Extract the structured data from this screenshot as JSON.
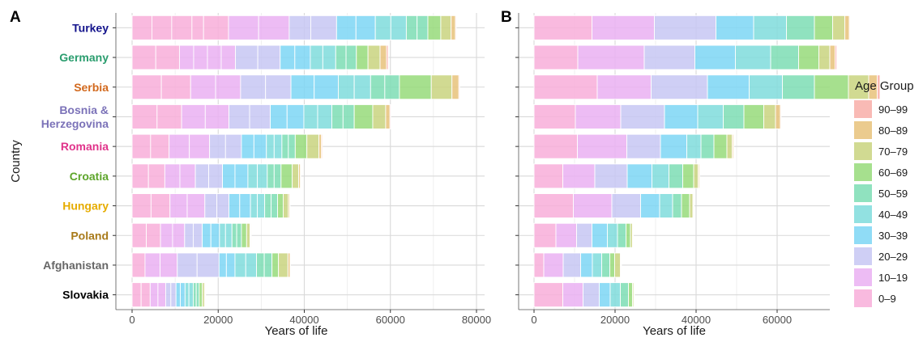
{
  "y_axis_title": "Country",
  "legend": {
    "title": "Age Group",
    "items": [
      {
        "label": "90–99",
        "color": "#F8AEA8"
      },
      {
        "label": "80–89",
        "color": "#E8C27A"
      },
      {
        "label": "70–79",
        "color": "#C9D37F"
      },
      {
        "label": "60–69",
        "color": "#97DA7A"
      },
      {
        "label": "50–59",
        "color": "#7DDDB4"
      },
      {
        "label": "40–49",
        "color": "#7FDCDC"
      },
      {
        "label": "30–39",
        "color": "#7DD6F4"
      },
      {
        "label": "20–29",
        "color": "#C7C7F3"
      },
      {
        "label": "10–19",
        "color": "#EAB0F2"
      },
      {
        "label": "0–9",
        "color": "#F8AED9"
      }
    ]
  },
  "chart_data": [
    {
      "panel": "A",
      "type": "bar",
      "orientation": "horizontal",
      "stacked": true,
      "xlabel": "Years of life",
      "ylabel": "Country",
      "xlim": [
        0,
        80000
      ],
      "xticks": [
        0,
        20000,
        40000,
        60000,
        80000
      ],
      "grid": true,
      "categories": [
        {
          "name": "Turkey",
          "color": "#14148C"
        },
        {
          "name": "Germany",
          "color": "#2A9D6E"
        },
        {
          "name": "Serbia",
          "color": "#D2691E"
        },
        {
          "name": "Bosnia & Herzegovina",
          "lines": [
            "Bosnia &",
            "Herzegovina"
          ],
          "color": "#7B72B8"
        },
        {
          "name": "Romania",
          "color": "#E0338A"
        },
        {
          "name": "Croatia",
          "color": "#5DA52A"
        },
        {
          "name": "Hungary",
          "color": "#E6AC00"
        },
        {
          "name": "Poland",
          "color": "#A87A1A"
        },
        {
          "name": "Afghanistan",
          "color": "#666666"
        },
        {
          "name": "Slovakia",
          "color": "#000000"
        }
      ],
      "age_groups": [
        "0–9",
        "10–19",
        "20–29",
        "30–39",
        "40–49",
        "50–59",
        "60–69",
        "70–79",
        "80–89",
        "90–99"
      ],
      "values": {
        "Turkey": [
          [
            4600,
            4600,
            4700,
            2700,
            5800
          ],
          [
            7000,
            7100
          ],
          [
            5000,
            6000
          ],
          [
            4500,
            4500
          ],
          [
            3600,
            3600
          ],
          [
            2500,
            2500
          ],
          [
            3000
          ],
          [
            2400
          ],
          [
            1000
          ],
          [
            200
          ]
        ],
        "Germany": [
          [
            5500,
            5500
          ],
          [
            3300,
            3200,
            3200,
            3300
          ],
          [
            5200,
            5200
          ],
          [
            3400,
            3600
          ],
          [
            2900,
            3000
          ],
          [
            2400,
            2400
          ],
          [
            2700
          ],
          [
            2800
          ],
          [
            1500
          ],
          [
            400
          ]
        ],
        "Serbia": [
          [
            6800,
            6800
          ],
          [
            5800,
            5800
          ],
          [
            5800,
            5900
          ],
          [
            5400,
            5600
          ],
          [
            3700,
            3800
          ],
          [
            3300,
            3400
          ],
          [
            7400
          ],
          [
            4800
          ],
          [
            1600
          ],
          [
            200
          ]
        ],
        "Bosnia & Herzegovina": [
          [
            5800,
            5700
          ],
          [
            5500,
            5500
          ],
          [
            4800,
            4800
          ],
          [
            3900,
            3900
          ],
          [
            3200,
            3300
          ],
          [
            2600,
            2600
          ],
          [
            4300
          ],
          [
            3000
          ],
          [
            1000
          ],
          [
            200
          ]
        ],
        "Romania": [
          [
            4300,
            4300
          ],
          [
            4700,
            4700
          ],
          [
            3700,
            3700
          ],
          [
            2900,
            2900
          ],
          [
            1800,
            1800
          ],
          [
            1500,
            1600
          ],
          [
            2700
          ],
          [
            2800
          ],
          [
            600
          ],
          [
            200
          ]
        ],
        "Croatia": [
          [
            3800,
            3800
          ],
          [
            3500,
            3600
          ],
          [
            3100,
            3200
          ],
          [
            2900,
            3000
          ],
          [
            2200,
            2300
          ],
          [
            1600,
            1600
          ],
          [
            2600
          ],
          [
            1500
          ],
          [
            400
          ],
          [
            100
          ]
        ],
        "Hungary": [
          [
            4400,
            4400
          ],
          [
            4000,
            4100
          ],
          [
            2800,
            2800
          ],
          [
            2500,
            2500
          ],
          [
            1600,
            1700
          ],
          [
            1500,
            1500
          ],
          [
            1300
          ],
          [
            1200
          ],
          [
            300
          ],
          [
            100
          ]
        ],
        "Poland": [
          [
            3300,
            3300
          ],
          [
            2800,
            2800
          ],
          [
            2000,
            2100
          ],
          [
            2000,
            2000
          ],
          [
            1400,
            1500
          ],
          [
            1100,
            1100
          ],
          [
            1200
          ],
          [
            800
          ],
          [
            200
          ],
          [
            100
          ]
        ],
        "Afghanistan": [
          [
            3000
          ],
          [
            3500,
            4000
          ],
          [
            4600,
            5100
          ],
          [
            1700,
            2000
          ],
          [
            2500,
            2500
          ],
          [
            1800,
            1800
          ],
          [
            1500
          ],
          [
            2200
          ],
          [
            500
          ],
          [
            100
          ]
        ],
        "Slovakia": [
          [
            2100,
            2100
          ],
          [
            1800,
            1800
          ],
          [
            1200,
            1200
          ],
          [
            1000,
            1100
          ],
          [
            900,
            1000
          ],
          [
            700,
            700
          ],
          [
            700
          ],
          [
            500
          ],
          [
            200
          ],
          [
            100
          ]
        ]
      }
    },
    {
      "panel": "B",
      "type": "bar",
      "orientation": "horizontal",
      "stacked": true,
      "xlabel": "Years of life",
      "xlim": [
        0,
        73000
      ],
      "xticks": [
        0,
        20000,
        40000,
        60000
      ],
      "grid": true,
      "categories": [
        "Turkey",
        "Germany",
        "Serbia",
        "Bosnia & Herzegovina",
        "Romania",
        "Croatia",
        "Hungary",
        "Poland",
        "Afghanistan",
        "Slovakia"
      ],
      "age_groups": [
        "0–9",
        "10–19",
        "20–29",
        "30–39",
        "40–49",
        "50–59",
        "60–69",
        "70–79",
        "80–89",
        "90–99"
      ],
      "values": {
        "Turkey": [
          [
            14300
          ],
          [
            15400
          ],
          [
            15200
          ],
          [
            9300
          ],
          [
            8100
          ],
          [
            6900
          ],
          [
            4500
          ],
          [
            3000
          ],
          [
            1100
          ],
          [
            200
          ]
        ],
        "Germany": [
          [
            10800
          ],
          [
            16400
          ],
          [
            12500
          ],
          [
            10000
          ],
          [
            8700
          ],
          [
            6900
          ],
          [
            5000
          ],
          [
            2700
          ],
          [
            1300
          ],
          [
            400
          ]
        ],
        "Serbia": [
          [
            15600
          ],
          [
            13300
          ],
          [
            13900
          ],
          [
            10300
          ],
          [
            8200
          ],
          [
            7900
          ],
          [
            8400
          ],
          [
            5000
          ],
          [
            2100
          ],
          [
            700
          ]
        ],
        "Bosnia & Herzegovina": [
          [
            10200
          ],
          [
            11200
          ],
          [
            10800
          ],
          [
            8200
          ],
          [
            6300
          ],
          [
            5100
          ],
          [
            4900
          ],
          [
            2900
          ],
          [
            1200
          ],
          [
            200
          ]
        ],
        "Romania": [
          [
            10700
          ],
          [
            12200
          ],
          [
            8300
          ],
          [
            6500
          ],
          [
            3500
          ],
          [
            3200
          ],
          [
            3200
          ],
          [
            1300
          ],
          [
            300
          ],
          [
            100
          ]
        ],
        "Croatia": [
          [
            7100
          ],
          [
            7900
          ],
          [
            8000
          ],
          [
            6100
          ],
          [
            4200
          ],
          [
            3400
          ],
          [
            2700
          ],
          [
            1100
          ],
          [
            300
          ],
          [
            100
          ]
        ],
        "Hungary": [
          [
            9700
          ],
          [
            9500
          ],
          [
            7100
          ],
          [
            4700
          ],
          [
            3200
          ],
          [
            2200
          ],
          [
            2000
          ],
          [
            800
          ],
          [
            200
          ],
          [
            100
          ]
        ],
        "Poland": [
          [
            5400
          ],
          [
            5100
          ],
          [
            3800
          ],
          [
            3800
          ],
          [
            2500
          ],
          [
            2100
          ],
          [
            1100
          ],
          [
            500
          ],
          [
            100
          ],
          [
            100
          ]
        ],
        "Afghanistan": [
          [
            2400
          ],
          [
            4800
          ],
          [
            4300
          ],
          [
            2900
          ],
          [
            2300
          ],
          [
            2000
          ],
          [
            1200
          ],
          [
            1400
          ],
          [
            200
          ],
          [
            100
          ]
        ],
        "Slovakia": [
          [
            7100
          ],
          [
            5000
          ],
          [
            4000
          ],
          [
            2700
          ],
          [
            2500
          ],
          [
            2000
          ],
          [
            1000
          ],
          [
            300
          ],
          [
            100
          ],
          [
            100
          ]
        ]
      }
    }
  ]
}
